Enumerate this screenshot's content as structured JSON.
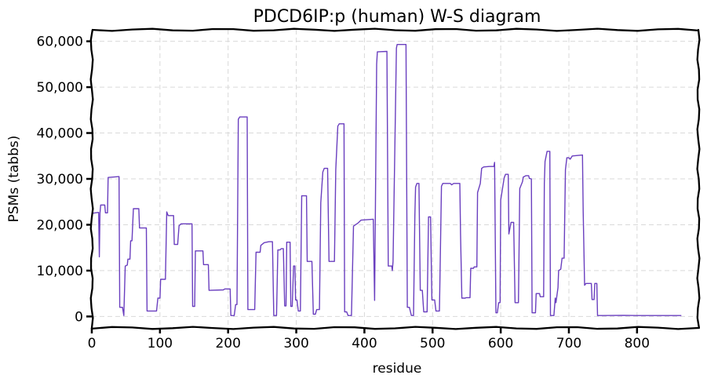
{
  "chart_data": {
    "type": "line",
    "title": "PDCD6IP:p (human) W-S diagram",
    "xlabel": "residue",
    "ylabel": "PSMs (tabbs)",
    "xlim": [
      0,
      890
    ],
    "ylim": [
      -2500,
      62500
    ],
    "xticks": [
      0,
      100,
      200,
      300,
      400,
      500,
      600,
      700,
      800
    ],
    "yticks": [
      0,
      10000,
      20000,
      30000,
      40000,
      50000,
      60000
    ],
    "ytick_labels": [
      "0",
      "10,000",
      "20,000",
      "30,000",
      "40,000",
      "50,000",
      "60,000"
    ],
    "grid": true,
    "series": [
      {
        "color": "#6a3fbf",
        "points": [
          [
            1,
            22500
          ],
          [
            10,
            22700
          ],
          [
            11,
            13000
          ],
          [
            12,
            22500
          ],
          [
            13,
            24300
          ],
          [
            19,
            24300
          ],
          [
            20,
            22600
          ],
          [
            23,
            22600
          ],
          [
            24,
            30300
          ],
          [
            40,
            30500
          ],
          [
            41,
            2000
          ],
          [
            45,
            2000
          ],
          [
            47,
            200
          ],
          [
            49,
            11000
          ],
          [
            52,
            11200
          ],
          [
            53,
            12500
          ],
          [
            56,
            12500
          ],
          [
            57,
            16500
          ],
          [
            59,
            16500
          ],
          [
            61,
            23500
          ],
          [
            69,
            23500
          ],
          [
            70,
            19300
          ],
          [
            80,
            19300
          ],
          [
            81,
            1200
          ],
          [
            95,
            1200
          ],
          [
            97,
            4000
          ],
          [
            100,
            4000
          ],
          [
            101,
            8100
          ],
          [
            108,
            8100
          ],
          [
            110,
            22800
          ],
          [
            112,
            22000
          ],
          [
            120,
            22000
          ],
          [
            121,
            15700
          ],
          [
            126,
            15700
          ],
          [
            128,
            19800
          ],
          [
            131,
            20200
          ],
          [
            147,
            20200
          ],
          [
            148,
            2200
          ],
          [
            151,
            2200
          ],
          [
            152,
            14300
          ],
          [
            163,
            14300
          ],
          [
            164,
            11300
          ],
          [
            171,
            11300
          ],
          [
            172,
            5700
          ],
          [
            193,
            5800
          ],
          [
            195,
            6000
          ],
          [
            203,
            6000
          ],
          [
            204,
            200
          ],
          [
            209,
            200
          ],
          [
            211,
            2600
          ],
          [
            213,
            2600
          ],
          [
            215,
            43000
          ],
          [
            217,
            43500
          ],
          [
            228,
            43500
          ],
          [
            229,
            1500
          ],
          [
            239,
            1500
          ],
          [
            241,
            14000
          ],
          [
            247,
            14000
          ],
          [
            248,
            15500
          ],
          [
            253,
            16100
          ],
          [
            260,
            16300
          ],
          [
            265,
            16300
          ],
          [
            267,
            200
          ],
          [
            271,
            200
          ],
          [
            273,
            14500
          ],
          [
            276,
            14500
          ],
          [
            278,
            14800
          ],
          [
            281,
            14800
          ],
          [
            283,
            2300
          ],
          [
            285,
            2300
          ],
          [
            286,
            16200
          ],
          [
            291,
            16200
          ],
          [
            292,
            2200
          ],
          [
            294,
            2200
          ],
          [
            296,
            11000
          ],
          [
            298,
            11000
          ],
          [
            299,
            3600
          ],
          [
            301,
            3600
          ],
          [
            303,
            1200
          ],
          [
            306,
            1200
          ],
          [
            308,
            26300
          ],
          [
            315,
            26300
          ],
          [
            316,
            12000
          ],
          [
            323,
            12000
          ],
          [
            325,
            500
          ],
          [
            328,
            500
          ],
          [
            330,
            1500
          ],
          [
            334,
            1500
          ],
          [
            336,
            24800
          ],
          [
            339,
            31500
          ],
          [
            341,
            32300
          ],
          [
            346,
            32300
          ],
          [
            348,
            12000
          ],
          [
            356,
            12000
          ],
          [
            358,
            32000
          ],
          [
            361,
            41500
          ],
          [
            363,
            42000
          ],
          [
            370,
            42000
          ],
          [
            371,
            1000
          ],
          [
            374,
            1000
          ],
          [
            376,
            200
          ],
          [
            381,
            200
          ],
          [
            384,
            19700
          ],
          [
            390,
            20300
          ],
          [
            395,
            21000
          ],
          [
            413,
            21200
          ],
          [
            415,
            3500
          ],
          [
            418,
            55000
          ],
          [
            419,
            57700
          ],
          [
            433,
            57800
          ],
          [
            435,
            11000
          ],
          [
            440,
            11000
          ],
          [
            441,
            10000
          ],
          [
            442,
            12000
          ],
          [
            447,
            58500
          ],
          [
            448,
            59300
          ],
          [
            461,
            59300
          ],
          [
            463,
            2000
          ],
          [
            466,
            2000
          ],
          [
            469,
            200
          ],
          [
            472,
            200
          ],
          [
            474,
            22000
          ],
          [
            475,
            28200
          ],
          [
            477,
            29000
          ],
          [
            480,
            29000
          ],
          [
            482,
            5700
          ],
          [
            485,
            5700
          ],
          [
            487,
            1000
          ],
          [
            492,
            1000
          ],
          [
            494,
            21700
          ],
          [
            497,
            21700
          ],
          [
            499,
            3600
          ],
          [
            503,
            3600
          ],
          [
            505,
            1200
          ],
          [
            510,
            1200
          ],
          [
            513,
            28400
          ],
          [
            515,
            29000
          ],
          [
            526,
            29000
          ],
          [
            528,
            28700
          ],
          [
            531,
            29000
          ],
          [
            540,
            29000
          ],
          [
            541,
            18000
          ],
          [
            543,
            4000
          ],
          [
            548,
            4000
          ],
          [
            549,
            4100
          ],
          [
            555,
            4100
          ],
          [
            556,
            10500
          ],
          [
            560,
            10500
          ],
          [
            561,
            10800
          ],
          [
            565,
            10800
          ],
          [
            566,
            27000
          ],
          [
            570,
            29000
          ],
          [
            572,
            32300
          ],
          [
            575,
            32600
          ],
          [
            583,
            32700
          ],
          [
            590,
            32700
          ],
          [
            591,
            33600
          ],
          [
            593,
            800
          ],
          [
            595,
            800
          ],
          [
            597,
            3000
          ],
          [
            599,
            3000
          ],
          [
            600,
            25400
          ],
          [
            605,
            30200
          ],
          [
            607,
            31000
          ],
          [
            611,
            31000
          ],
          [
            612,
            18000
          ],
          [
            615,
            20500
          ],
          [
            619,
            20500
          ],
          [
            621,
            3000
          ],
          [
            626,
            3000
          ],
          [
            628,
            27900
          ],
          [
            632,
            29400
          ],
          [
            633,
            30400
          ],
          [
            637,
            30700
          ],
          [
            641,
            30700
          ],
          [
            642,
            30100
          ],
          [
            645,
            30000
          ],
          [
            646,
            800
          ],
          [
            651,
            800
          ],
          [
            652,
            5000
          ],
          [
            657,
            5000
          ],
          [
            658,
            4300
          ],
          [
            663,
            4300
          ],
          [
            664,
            29000
          ],
          [
            665,
            33800
          ],
          [
            668,
            36000
          ],
          [
            672,
            36000
          ],
          [
            673,
            200
          ],
          [
            678,
            200
          ],
          [
            680,
            4000
          ],
          [
            681,
            3000
          ],
          [
            684,
            6300
          ],
          [
            685,
            10000
          ],
          [
            688,
            10300
          ],
          [
            690,
            12700
          ],
          [
            693,
            12700
          ],
          [
            695,
            32000
          ],
          [
            697,
            34600
          ],
          [
            700,
            34600
          ],
          [
            702,
            34300
          ],
          [
            705,
            35000
          ],
          [
            720,
            35200
          ],
          [
            721,
            23000
          ],
          [
            723,
            6800
          ],
          [
            725,
            7200
          ],
          [
            733,
            7200
          ],
          [
            734,
            3700
          ],
          [
            737,
            3700
          ],
          [
            738,
            7200
          ],
          [
            741,
            7200
          ],
          [
            742,
            200
          ],
          [
            745,
            200
          ],
          [
            750,
            200
          ],
          [
            780,
            250
          ],
          [
            800,
            200
          ],
          [
            830,
            200
          ],
          [
            865,
            200
          ]
        ]
      }
    ]
  }
}
